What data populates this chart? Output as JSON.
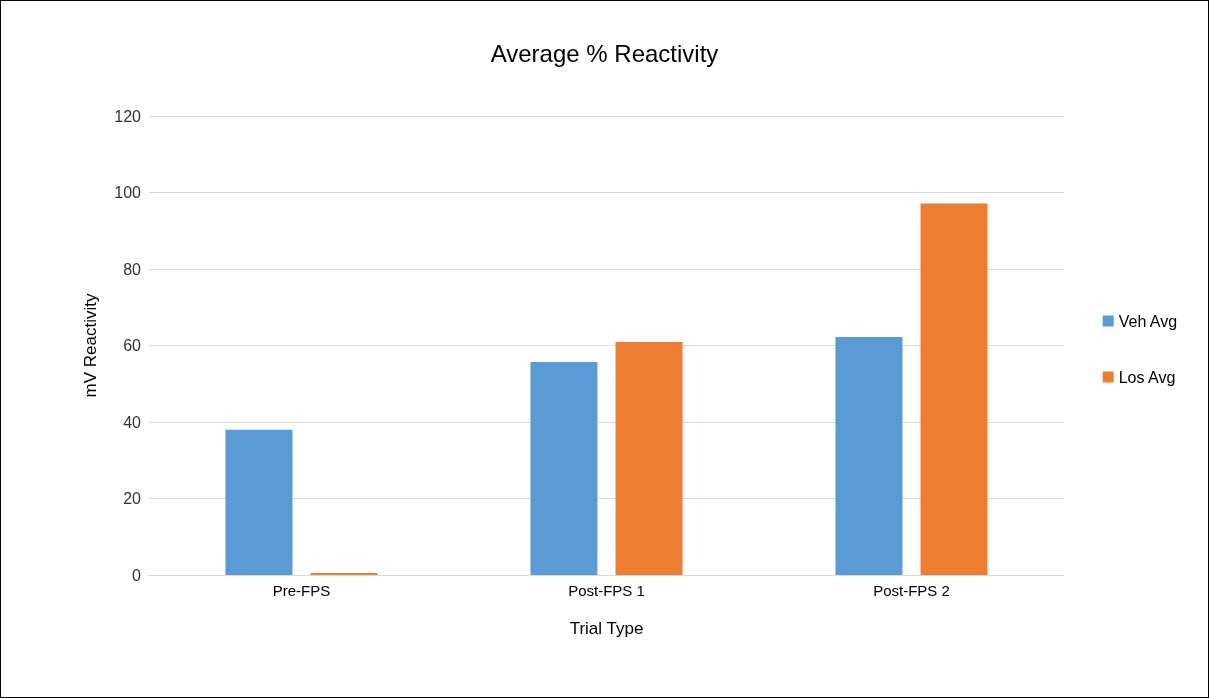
{
  "chart_data": {
    "type": "bar",
    "title": "Average % Reactivity",
    "xlabel": "Trial Type",
    "ylabel": "mV Reactivity",
    "categories": [
      "Pre-FPS",
      "Post-FPS 1",
      "Post-FPS 2"
    ],
    "series": [
      {
        "name": "Veh Avg",
        "color": "#5b9bd5",
        "values": [
          38.0,
          55.7,
          62.2
        ]
      },
      {
        "name": "Los Avg",
        "color": "#ed7d31",
        "values": [
          0.5,
          60.9,
          97.1
        ]
      }
    ],
    "ylim": [
      0,
      120
    ],
    "yticks": [
      0,
      20,
      40,
      60,
      80,
      100,
      120
    ],
    "grid": "y",
    "legend": "right"
  }
}
